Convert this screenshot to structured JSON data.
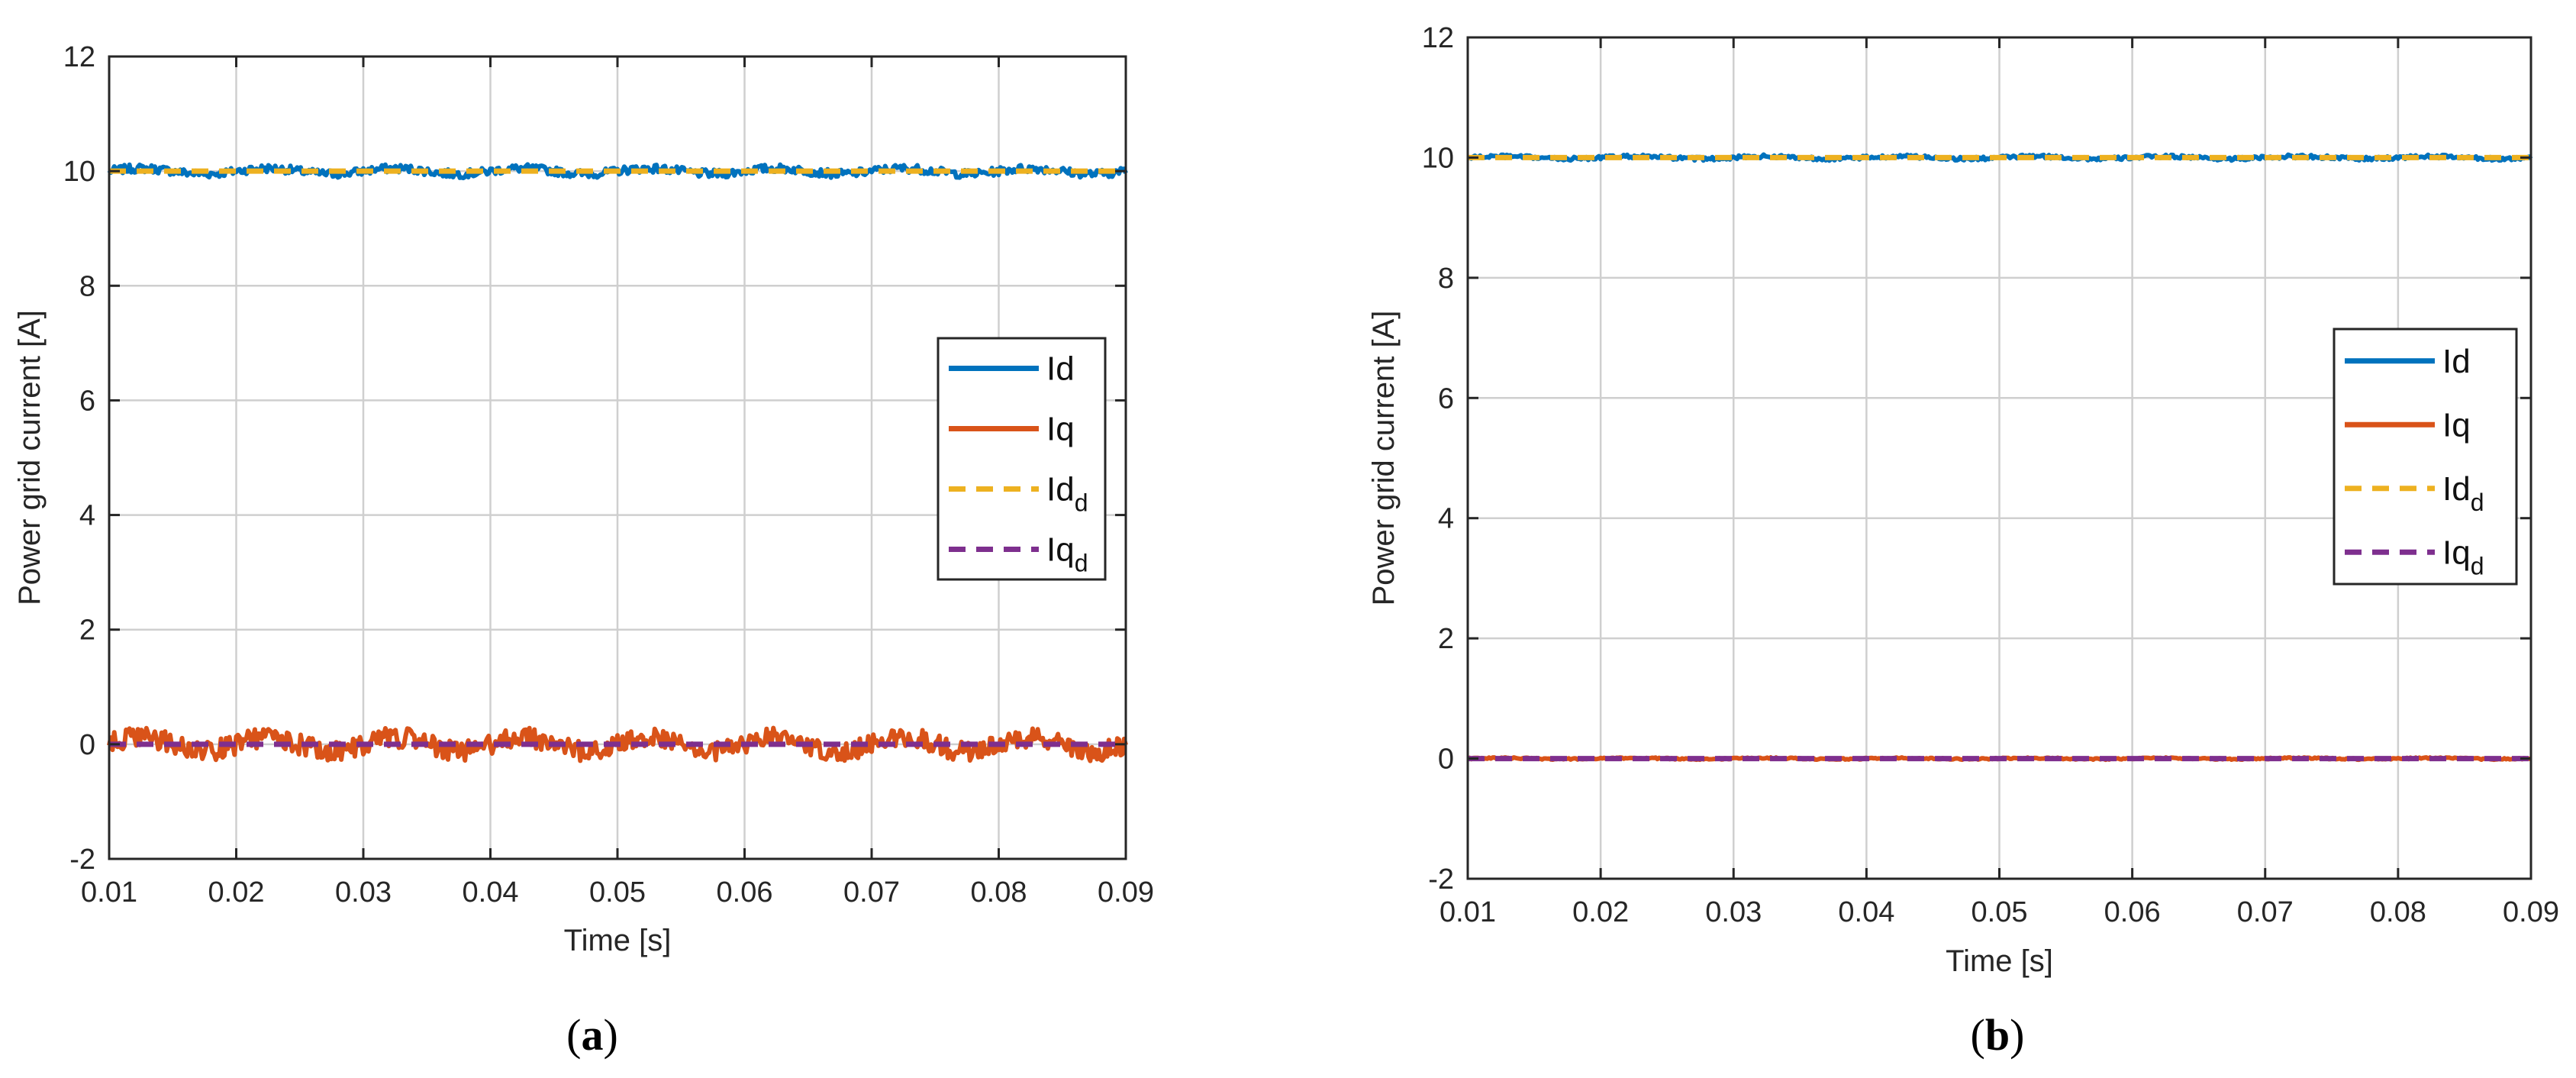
{
  "chart_data": [
    {
      "type": "line",
      "panel_label": "a",
      "xlabel": "Time [s]",
      "ylabel": "Power grid current [A]",
      "xlim": [
        0.01,
        0.09
      ],
      "ylim": [
        -2,
        12
      ],
      "xticks": [
        "0.01",
        "0.02",
        "0.03",
        "0.04",
        "0.05",
        "0.06",
        "0.07",
        "0.08",
        "0.09"
      ],
      "yticks": [
        "-2",
        "0",
        "2",
        "4",
        "6",
        "8",
        "10",
        "12"
      ],
      "grid": true,
      "legend_position": "right",
      "series": [
        {
          "name": "Id",
          "color": "#0072BD",
          "dash": false,
          "level": 10.0,
          "ripple": 0.12
        },
        {
          "name": "Iq",
          "color": "#D95319",
          "dash": false,
          "level": 0.0,
          "ripple": 0.3
        },
        {
          "name": "Id",
          "sub": "d",
          "color": "#EDB120",
          "dash": true,
          "level": 10.0,
          "ripple": 0.0
        },
        {
          "name": "Iq",
          "sub": "d",
          "color": "#7E2F8E",
          "dash": true,
          "level": 0.0,
          "ripple": 0.0
        }
      ]
    },
    {
      "type": "line",
      "panel_label": "b",
      "xlabel": "Time [s]",
      "ylabel": "Power grid current [A]",
      "xlim": [
        0.01,
        0.09
      ],
      "ylim": [
        -2,
        12
      ],
      "xticks": [
        "0.01",
        "0.02",
        "0.03",
        "0.04",
        "0.05",
        "0.06",
        "0.07",
        "0.08",
        "0.09"
      ],
      "yticks": [
        "-2",
        "0",
        "2",
        "4",
        "6",
        "8",
        "10",
        "12"
      ],
      "grid": true,
      "legend_position": "right",
      "series": [
        {
          "name": "Id",
          "color": "#0072BD",
          "dash": false,
          "level": 10.0,
          "ripple": 0.05
        },
        {
          "name": "Iq",
          "color": "#D95319",
          "dash": false,
          "level": 0.0,
          "ripple": 0.02
        },
        {
          "name": "Id",
          "sub": "d",
          "color": "#EDB120",
          "dash": true,
          "level": 10.0,
          "ripple": 0.0
        },
        {
          "name": "Iq",
          "sub": "d",
          "color": "#7E2F8E",
          "dash": true,
          "level": 0.0,
          "ripple": 0.0
        }
      ]
    }
  ]
}
